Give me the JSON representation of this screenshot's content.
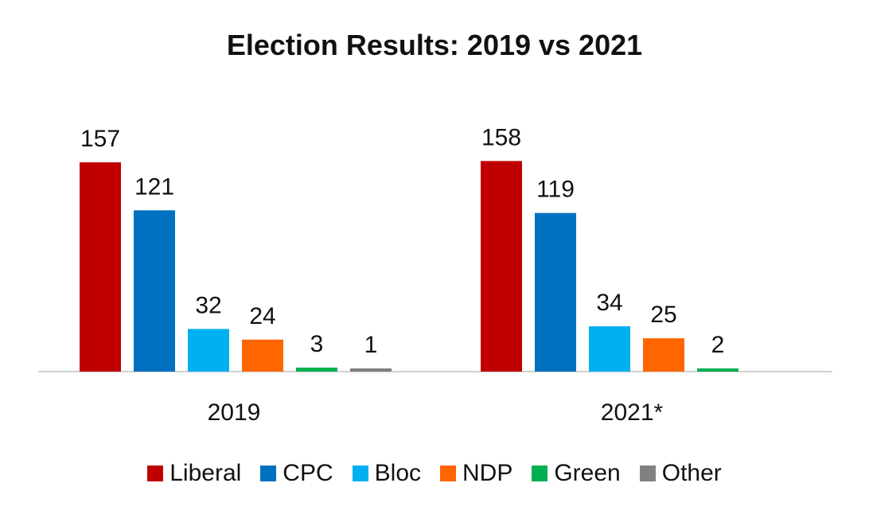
{
  "chart_data": {
    "type": "bar",
    "title": "Election Results: 2019 vs 2021",
    "xlabel": "",
    "ylabel": "",
    "ylim": [
      0,
      165
    ],
    "grid": false,
    "legend_position": "bottom",
    "categories": [
      "2019",
      "2021*"
    ],
    "series": [
      {
        "name": "Liberal",
        "color": "#C00000",
        "values": [
          157,
          158
        ]
      },
      {
        "name": "CPC",
        "color": "#0070C0",
        "values": [
          121,
          119
        ]
      },
      {
        "name": "Bloc",
        "color": "#00B0F0",
        "values": [
          32,
          34
        ]
      },
      {
        "name": "NDP",
        "color": "#FF6600",
        "values": [
          24,
          25
        ]
      },
      {
        "name": "Green",
        "color": "#00B050",
        "values": [
          3,
          2
        ]
      },
      {
        "name": "Other",
        "color": "#808080",
        "values": [
          1,
          null
        ]
      }
    ]
  }
}
